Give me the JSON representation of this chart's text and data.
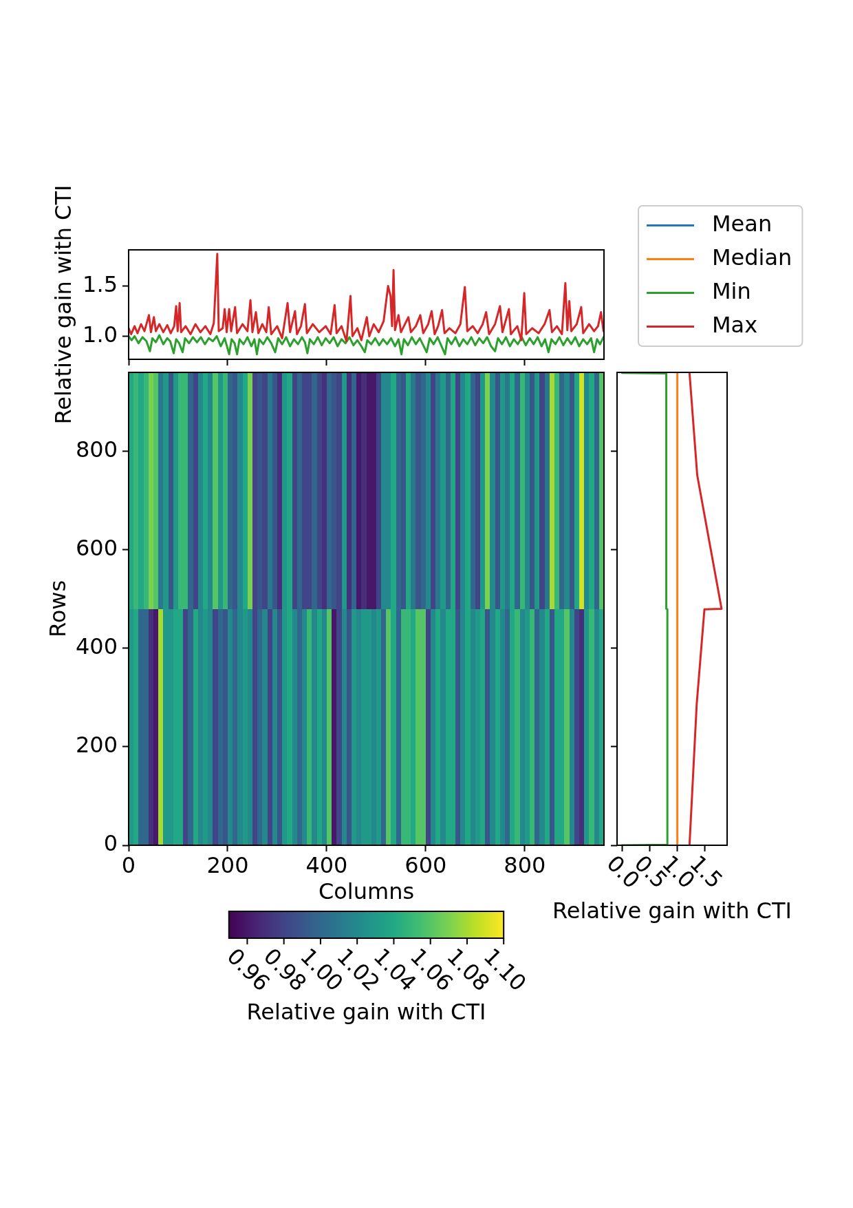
{
  "chart_data": [
    {
      "type": "line",
      "ylabel": "Relative gain with CTI",
      "xlim": [
        0,
        960
      ],
      "xticks": [
        0,
        200,
        400,
        600,
        800
      ],
      "ylim": [
        0.77,
        1.86
      ],
      "yticks": [
        {
          "value": 1,
          "label": "1.0"
        },
        {
          "value": 1.5,
          "label": "1.5"
        }
      ],
      "tick_labels": "y",
      "series": [
        {
          "color": "#2ca02c",
          "x": [
            0,
            6,
            12,
            20,
            28,
            36,
            43,
            48,
            55,
            62,
            70,
            78,
            84,
            91,
            96,
            102,
            109,
            114,
            122,
            130,
            138,
            146,
            154,
            162,
            170,
            178,
            186,
            194,
            203,
            208,
            214,
            219,
            224,
            232,
            240,
            248,
            254,
            259,
            264,
            272,
            280,
            288,
            296,
            302,
            310,
            318,
            326,
            334,
            342,
            350,
            356,
            361,
            366,
            374,
            382,
            390,
            398,
            406,
            414,
            422,
            430,
            438,
            446,
            454,
            462,
            470,
            477,
            482,
            490,
            498,
            506,
            514,
            522,
            530,
            538,
            545,
            551,
            556,
            564,
            572,
            580,
            588,
            595,
            602,
            608,
            616,
            624,
            632,
            639,
            644,
            652,
            660,
            668,
            676,
            684,
            692,
            700,
            708,
            716,
            724,
            732,
            740,
            746,
            754,
            762,
            770,
            778,
            786,
            794,
            802,
            810,
            818,
            826,
            834,
            841,
            848,
            854,
            862,
            870,
            878,
            886,
            894,
            902,
            910,
            918,
            926,
            934,
            940,
            946,
            952,
            959
          ],
          "values": [
            1.0,
            0.96,
            1.0,
            0.93,
            0.99,
            0.95,
            0.85,
            0.98,
            0.94,
            1.01,
            0.92,
            0.98,
            0.95,
            0.83,
            0.97,
            0.93,
            0.84,
            0.98,
            0.93,
            0.99,
            0.94,
            0.99,
            0.92,
            0.98,
            0.95,
            1.0,
            0.9,
            0.98,
            0.82,
            0.97,
            0.93,
            0.82,
            0.97,
            0.92,
            0.99,
            0.9,
            0.97,
            0.82,
            0.97,
            0.92,
            0.99,
            0.93,
            0.84,
            0.98,
            0.92,
            0.99,
            0.9,
            0.97,
            0.92,
            0.99,
            0.94,
            0.83,
            0.97,
            0.92,
            0.99,
            0.91,
            0.98,
            0.93,
            0.99,
            0.9,
            0.97,
            0.93,
            0.99,
            0.91,
            0.96,
            0.9,
            0.84,
            0.96,
            0.92,
            0.98,
            0.91,
            0.97,
            0.92,
            0.98,
            0.9,
            0.97,
            0.82,
            0.97,
            0.91,
            0.99,
            0.92,
            0.98,
            0.91,
            0.84,
            0.98,
            0.92,
            0.99,
            0.9,
            0.82,
            0.98,
            0.92,
            0.99,
            0.9,
            0.97,
            0.92,
            0.99,
            0.91,
            0.98,
            0.93,
            0.99,
            0.9,
            0.85,
            0.98,
            0.92,
            0.99,
            0.9,
            0.97,
            0.92,
            0.99,
            0.91,
            0.98,
            0.92,
            0.99,
            0.9,
            0.97,
            0.84,
            0.97,
            0.92,
            0.99,
            0.91,
            0.98,
            0.92,
            0.99,
            0.9,
            0.97,
            0.92,
            0.98,
            0.84,
            0.97,
            0.92,
            0.99
          ]
        },
        {
          "color": "#d62728",
          "x": [
            0,
            5,
            12,
            18,
            25,
            32,
            41,
            45,
            51,
            55,
            62,
            70,
            78,
            85,
            92,
            96,
            99,
            103,
            106,
            115,
            125,
            135,
            145,
            155,
            165,
            172,
            179,
            182,
            190,
            194,
            198,
            203,
            207,
            215,
            219,
            230,
            240,
            246,
            250,
            257,
            262,
            270,
            278,
            283,
            288,
            300,
            310,
            321,
            326,
            336,
            340,
            348,
            356,
            360,
            372,
            385,
            398,
            408,
            416,
            420,
            430,
            440,
            448,
            452,
            462,
            470,
            481,
            486,
            495,
            505,
            515,
            524,
            529,
            532,
            535,
            538,
            545,
            550,
            558,
            565,
            570,
            580,
            589,
            595,
            605,
            612,
            618,
            625,
            633,
            638,
            648,
            660,
            670,
            679,
            684,
            695,
            705,
            715,
            722,
            728,
            740,
            750,
            755,
            768,
            772,
            785,
            793,
            799,
            803,
            815,
            828,
            840,
            850,
            855,
            865,
            875,
            882,
            886,
            890,
            894,
            905,
            914,
            918,
            930,
            940,
            948,
            954,
            959
          ],
          "values": [
            1.08,
            1.02,
            1.1,
            1.03,
            1.12,
            1.05,
            1.21,
            1.04,
            1.19,
            1.05,
            1.12,
            1.04,
            1.11,
            1.03,
            1.1,
            1.3,
            1.05,
            1.33,
            1.04,
            1.1,
            1.02,
            1.12,
            1.04,
            1.1,
            1.02,
            1.13,
            1.82,
            1.05,
            1.08,
            1.27,
            1.04,
            1.27,
            1.05,
            1.29,
            1.03,
            1.12,
            1.05,
            1.36,
            1.04,
            1.24,
            1.03,
            1.12,
            1.04,
            1.29,
            1.02,
            1.1,
            0.98,
            1.33,
            1.04,
            1.25,
            1.02,
            1.1,
            1.32,
            1.03,
            1.12,
            1.04,
            1.1,
            1.02,
            1.31,
            1.03,
            1.1,
            0.95,
            1.4,
            1.0,
            1.08,
            0.96,
            1.19,
            1.0,
            1.12,
            1.04,
            1.15,
            1.5,
            1.4,
            1.1,
            1.66,
            1.06,
            1.21,
            1.04,
            1.12,
            1.19,
            1.04,
            1.1,
            1.21,
            1.03,
            1.12,
            1.25,
            1.02,
            1.1,
            1.26,
            1.03,
            1.08,
            1.03,
            1.12,
            1.49,
            1.05,
            1.1,
            1.03,
            1.12,
            1.24,
            1.02,
            1.12,
            1.3,
            1.04,
            1.27,
            1.02,
            1.1,
            0.96,
            1.43,
            1.02,
            1.08,
            1.03,
            1.12,
            1.26,
            1.04,
            1.1,
            1.02,
            1.53,
            1.06,
            1.35,
            1.05,
            1.12,
            1.29,
            1.03,
            1.12,
            1.05,
            1.1,
            1.24,
            1.05
          ]
        }
      ]
    },
    {
      "type": "heatmap",
      "xlabel": "Columns",
      "ylabel": "Rows",
      "clabel": "Relative gain with CTI",
      "x": [
        5,
        15,
        25,
        35,
        45,
        55,
        65,
        75,
        85,
        95,
        105,
        115,
        125,
        135,
        145,
        155,
        165,
        175,
        185,
        195,
        205,
        215,
        225,
        235,
        245,
        255,
        265,
        275,
        285,
        295,
        305,
        315,
        325,
        335,
        345,
        355,
        365,
        375,
        385,
        395,
        405,
        415,
        425,
        435,
        445,
        455,
        465,
        475,
        485,
        495,
        505,
        515,
        525,
        535,
        545,
        555,
        565,
        575,
        585,
        595,
        605,
        615,
        625,
        635,
        645,
        655,
        665,
        675,
        685,
        695,
        705,
        715,
        725,
        735,
        745,
        755,
        765,
        775,
        785,
        795,
        805,
        815,
        825,
        835,
        845,
        855,
        865,
        875,
        885,
        895,
        905,
        915,
        925,
        935,
        945,
        955
      ],
      "y": [
        720,
        240
      ],
      "cells": [
        [
          1.04,
          1.05,
          1.04,
          1.05,
          1.07,
          1.06,
          1.01,
          1.03,
          0.99,
          1.03,
          1.05,
          1.05,
          1.0,
          0.98,
          1.02,
          1.04,
          1.02,
          1.06,
          1.03,
          1.05,
          1.0,
          0.99,
          1.02,
          1.04,
          1.07,
          0.98,
          0.99,
          0.98,
          1.01,
          0.99,
          0.97,
          1.03,
          1.04,
          0.98,
          1.0,
          0.98,
          0.98,
          1.0,
          0.98,
          0.97,
          1.0,
          0.99,
          0.98,
          1.03,
          0.97,
          1.0,
          0.96,
          0.97,
          0.96,
          0.96,
          0.98,
          1.02,
          1.02,
          1.04,
          1.0,
          0.99,
          1.04,
          1.01,
          0.99,
          1.0,
          1.02,
          0.98,
          1.01,
          1.03,
          1.0,
          1.04,
          0.98,
          1.02,
          1.04,
          1.0,
          0.98,
          1.03,
          1.07,
          1.02,
          0.99,
          1.03,
          1.01,
          1.04,
          1.0,
          1.05,
          1.02,
          0.99,
          1.03,
          0.98,
          1.01,
          1.08,
          1.05,
          1.0,
          1.02,
          0.99,
          1.04,
          1.09,
          1.02,
          1.04,
          1.0,
          1.06
        ],
        [
          1.03,
          1.04,
          1.0,
          1.0,
          0.97,
          0.96,
          1.08,
          1.03,
          1.03,
          1.04,
          1.04,
          0.98,
          1.0,
          1.04,
          1.02,
          1.03,
          1.02,
          0.98,
          1.0,
          0.99,
          1.02,
          1.0,
          1.02,
          1.03,
          1.02,
          0.98,
          1.0,
          1.02,
          0.98,
          1.02,
          0.99,
          1.03,
          1.04,
          1.02,
          1.0,
          1.02,
          1.05,
          1.02,
          1.04,
          1.02,
          1.06,
          0.96,
          0.98,
          1.02,
          0.99,
          1.03,
          1.02,
          1.03,
          1.03,
          1.02,
          1.03,
          1.0,
          1.06,
          1.04,
          1.0,
          1.05,
          1.05,
          1.04,
          1.06,
          1.06,
          0.98,
          1.02,
          1.04,
          1.02,
          1.04,
          1.04,
          0.99,
          1.02,
          1.04,
          1.02,
          1.03,
          1.04,
          0.99,
          1.02,
          1.04,
          1.02,
          1.0,
          1.04,
          1.05,
          1.02,
          1.03,
          1.05,
          1.0,
          1.02,
          1.04,
          0.99,
          1.04,
          1.04,
          1.06,
          1.02,
          0.98,
          0.97,
          1.03,
          1.05,
          1.02,
          1.04
        ]
      ],
      "xlim": [
        0,
        960
      ],
      "xticks": [
        0,
        200,
        400,
        600,
        800
      ],
      "ylim": [
        0,
        960
      ],
      "yticks": [
        0,
        200,
        400,
        600,
        800
      ],
      "clim": [
        0.95,
        1.1
      ],
      "cticks": [
        0.96,
        0.98,
        {
          "value": 1,
          "label": "1.00"
        },
        1.02,
        1.04,
        1.06,
        1.08,
        {
          "value": 1.1,
          "label": "1.10"
        }
      ]
    },
    {
      "type": "line",
      "xlabel": "Relative gain with CTI",
      "xlim": [
        -0.09,
        1.9
      ],
      "xticks": [
        {
          "value": 0,
          "label": "0.0"
        },
        {
          "value": 0.5,
          "label": "0.5"
        },
        {
          "value": 1,
          "label": "1.0"
        },
        {
          "value": 1.5,
          "label": "1.5"
        }
      ],
      "ylim": [
        0,
        960
      ],
      "yticks": [
        0,
        200,
        400,
        600,
        800
      ],
      "tick_labels": "x",
      "legend": "top",
      "series": [
        {
          "name": "Mean",
          "color": "#1f77b4",
          "x": [
            null,
            null
          ],
          "values": [
            null,
            null
          ]
        },
        {
          "name": "Median",
          "color": "#ff7f0e",
          "x": [
            1.0,
            1.0
          ],
          "values": [
            0,
            959
          ]
        },
        {
          "name": "Min",
          "color": "#2ca02c",
          "x": [
            0.0,
            0.82,
            0.82,
            0.8,
            0.8,
            0.0
          ],
          "values": [
            0,
            1,
            479,
            480,
            958,
            959
          ]
        },
        {
          "name": "Max",
          "color": "#d62728",
          "x": [
            1.22,
            1.35,
            1.49,
            1.8,
            1.36,
            1.22
          ],
          "values": [
            0,
            286,
            479,
            480,
            751,
            959
          ]
        }
      ]
    }
  ]
}
